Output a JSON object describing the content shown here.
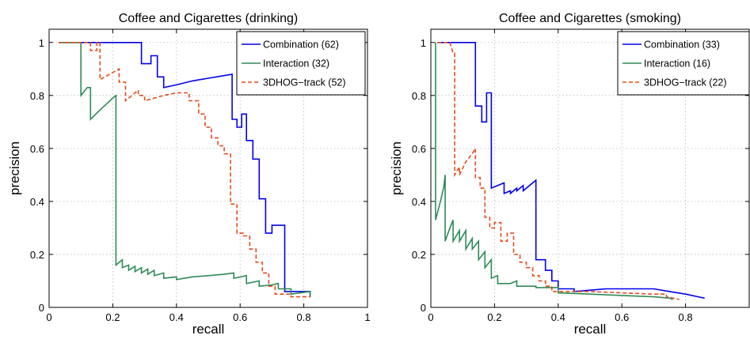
{
  "chart_data": [
    {
      "type": "line",
      "title": "Coffee and Cigarettes (drinking)",
      "xlabel": "recall",
      "ylabel": "precision",
      "xlim": [
        0,
        1
      ],
      "ylim": [
        0,
        1.05
      ],
      "xticks": [
        0,
        0.2,
        0.4,
        0.6,
        0.8,
        1
      ],
      "yticks": [
        0,
        0.2,
        0.4,
        0.6,
        0.8,
        1
      ],
      "xtick_labels": [
        "0",
        "0.2",
        "0.4",
        "0.6",
        "0.8",
        "1"
      ],
      "ytick_labels": [
        "0",
        "0.2",
        "0.4",
        "0.6",
        "0.8",
        "1"
      ],
      "grid": true,
      "legend_position": "top-right",
      "series": [
        {
          "name": "Combination (62)",
          "color": "#0000ee",
          "style": "solid",
          "points": [
            [
              0.03,
              1.0
            ],
            [
              0.29,
              1.0
            ],
            [
              0.29,
              0.92
            ],
            [
              0.32,
              0.92
            ],
            [
              0.32,
              0.95
            ],
            [
              0.34,
              0.95
            ],
            [
              0.34,
              0.87
            ],
            [
              0.36,
              0.87
            ],
            [
              0.36,
              0.83
            ],
            [
              0.4,
              0.84
            ],
            [
              0.45,
              0.855
            ],
            [
              0.5,
              0.865
            ],
            [
              0.54,
              0.873
            ],
            [
              0.575,
              0.88
            ],
            [
              0.575,
              0.71
            ],
            [
              0.59,
              0.71
            ],
            [
              0.59,
              0.68
            ],
            [
              0.605,
              0.68
            ],
            [
              0.605,
              0.73
            ],
            [
              0.62,
              0.73
            ],
            [
              0.62,
              0.63
            ],
            [
              0.64,
              0.63
            ],
            [
              0.64,
              0.56
            ],
            [
              0.66,
              0.56
            ],
            [
              0.66,
              0.41
            ],
            [
              0.68,
              0.41
            ],
            [
              0.68,
              0.28
            ],
            [
              0.7,
              0.28
            ],
            [
              0.7,
              0.31
            ],
            [
              0.72,
              0.31
            ],
            [
              0.73,
              0.31
            ],
            [
              0.74,
              0.31
            ],
            [
              0.74,
              0.06
            ],
            [
              0.82,
              0.06
            ],
            [
              0.82,
              0.04
            ]
          ]
        },
        {
          "name": "Interaction (32)",
          "color": "#2e8b57",
          "style": "solid",
          "points": [
            [
              0.03,
              1.0
            ],
            [
              0.1,
              1.0
            ],
            [
              0.1,
              0.8
            ],
            [
              0.12,
              0.83
            ],
            [
              0.13,
              0.83
            ],
            [
              0.13,
              0.71
            ],
            [
              0.16,
              0.745
            ],
            [
              0.2,
              0.79
            ],
            [
              0.21,
              0.8
            ],
            [
              0.21,
              0.16
            ],
            [
              0.23,
              0.18
            ],
            [
              0.23,
              0.15
            ],
            [
              0.25,
              0.16
            ],
            [
              0.25,
              0.14
            ],
            [
              0.27,
              0.155
            ],
            [
              0.27,
              0.135
            ],
            [
              0.29,
              0.15
            ],
            [
              0.29,
              0.13
            ],
            [
              0.31,
              0.145
            ],
            [
              0.31,
              0.125
            ],
            [
              0.33,
              0.14
            ],
            [
              0.33,
              0.12
            ],
            [
              0.36,
              0.13
            ],
            [
              0.36,
              0.11
            ],
            [
              0.4,
              0.115
            ],
            [
              0.4,
              0.105
            ],
            [
              0.45,
              0.115
            ],
            [
              0.5,
              0.12
            ],
            [
              0.55,
              0.125
            ],
            [
              0.58,
              0.13
            ],
            [
              0.58,
              0.11
            ],
            [
              0.62,
              0.12
            ],
            [
              0.62,
              0.09
            ],
            [
              0.66,
              0.1
            ],
            [
              0.66,
              0.08
            ],
            [
              0.7,
              0.085
            ],
            [
              0.72,
              0.09
            ],
            [
              0.72,
              0.07
            ],
            [
              0.76,
              0.07
            ],
            [
              0.76,
              0.05
            ],
            [
              0.82,
              0.06
            ],
            [
              0.82,
              0.04
            ]
          ]
        },
        {
          "name": "3DHOG−track (52)",
          "color": "#e34a1a",
          "style": "dashed",
          "points": [
            [
              0.03,
              1.0
            ],
            [
              0.13,
              1.0
            ],
            [
              0.13,
              0.97
            ],
            [
              0.15,
              0.97
            ],
            [
              0.15,
              1.0
            ],
            [
              0.16,
              1.0
            ],
            [
              0.16,
              0.86
            ],
            [
              0.19,
              0.88
            ],
            [
              0.22,
              0.9
            ],
            [
              0.22,
              0.85
            ],
            [
              0.24,
              0.85
            ],
            [
              0.24,
              0.78
            ],
            [
              0.26,
              0.8
            ],
            [
              0.28,
              0.82
            ],
            [
              0.28,
              0.8
            ],
            [
              0.3,
              0.8
            ],
            [
              0.3,
              0.78
            ],
            [
              0.33,
              0.79
            ],
            [
              0.36,
              0.8
            ],
            [
              0.4,
              0.81
            ],
            [
              0.44,
              0.81
            ],
            [
              0.44,
              0.78
            ],
            [
              0.47,
              0.78
            ],
            [
              0.47,
              0.73
            ],
            [
              0.49,
              0.73
            ],
            [
              0.49,
              0.68
            ],
            [
              0.51,
              0.68
            ],
            [
              0.51,
              0.64
            ],
            [
              0.53,
              0.64
            ],
            [
              0.53,
              0.61
            ],
            [
              0.55,
              0.61
            ],
            [
              0.55,
              0.58
            ],
            [
              0.57,
              0.58
            ],
            [
              0.57,
              0.39
            ],
            [
              0.59,
              0.39
            ],
            [
              0.59,
              0.28
            ],
            [
              0.61,
              0.28
            ],
            [
              0.61,
              0.27
            ],
            [
              0.63,
              0.27
            ],
            [
              0.63,
              0.22
            ],
            [
              0.65,
              0.22
            ],
            [
              0.65,
              0.17
            ],
            [
              0.67,
              0.17
            ],
            [
              0.67,
              0.13
            ],
            [
              0.69,
              0.13
            ],
            [
              0.69,
              0.08
            ],
            [
              0.71,
              0.08
            ],
            [
              0.71,
              0.05
            ],
            [
              0.76,
              0.05
            ],
            [
              0.76,
              0.04
            ],
            [
              0.82,
              0.04
            ]
          ]
        }
      ]
    },
    {
      "type": "line",
      "title": "Coffee and Cigarettes (smoking)",
      "xlabel": "recall",
      "ylabel": "precision",
      "xlim": [
        0,
        1
      ],
      "ylim": [
        0,
        1.05
      ],
      "xticks": [
        0,
        0.2,
        0.4,
        0.6,
        0.8,
        1
      ],
      "yticks": [
        0,
        0.2,
        0.4,
        0.6,
        0.8,
        1
      ],
      "xtick_labels": [
        "0",
        "0.2",
        "0.4",
        "0.6",
        "0.8",
        "1"
      ],
      "ytick_labels": [
        "0",
        "0.2",
        "0.4",
        "0.6",
        "0.8",
        "1"
      ],
      "grid": true,
      "legend_position": "top-right",
      "series": [
        {
          "name": "Combination (33)",
          "color": "#0000ee",
          "style": "solid",
          "points": [
            [
              0.02,
              1.0
            ],
            [
              0.14,
              1.0
            ],
            [
              0.14,
              0.76
            ],
            [
              0.16,
              0.76
            ],
            [
              0.16,
              0.7
            ],
            [
              0.175,
              0.7
            ],
            [
              0.175,
              0.81
            ],
            [
              0.19,
              0.81
            ],
            [
              0.19,
              0.45
            ],
            [
              0.21,
              0.46
            ],
            [
              0.23,
              0.47
            ],
            [
              0.23,
              0.43
            ],
            [
              0.25,
              0.44
            ],
            [
              0.25,
              0.43
            ],
            [
              0.27,
              0.45
            ],
            [
              0.27,
              0.44
            ],
            [
              0.29,
              0.46
            ],
            [
              0.29,
              0.44
            ],
            [
              0.31,
              0.46
            ],
            [
              0.33,
              0.48
            ],
            [
              0.33,
              0.18
            ],
            [
              0.36,
              0.18
            ],
            [
              0.36,
              0.14
            ],
            [
              0.38,
              0.14
            ],
            [
              0.38,
              0.1
            ],
            [
              0.4,
              0.1
            ],
            [
              0.4,
              0.07
            ],
            [
              0.45,
              0.07
            ],
            [
              0.45,
              0.06
            ],
            [
              0.55,
              0.07
            ],
            [
              0.6,
              0.07
            ],
            [
              0.65,
              0.07
            ],
            [
              0.7,
              0.07
            ],
            [
              0.75,
              0.06
            ],
            [
              0.8,
              0.05
            ],
            [
              0.84,
              0.04
            ],
            [
              0.86,
              0.035
            ]
          ]
        },
        {
          "name": "Interaction (16)",
          "color": "#2e8b57",
          "style": "solid",
          "points": [
            [
              0.015,
              1.0
            ],
            [
              0.015,
              0.33
            ],
            [
              0.03,
              0.4
            ],
            [
              0.04,
              0.45
            ],
            [
              0.045,
              0.5
            ],
            [
              0.045,
              0.25
            ],
            [
              0.06,
              0.3
            ],
            [
              0.07,
              0.33
            ],
            [
              0.07,
              0.25
            ],
            [
              0.09,
              0.29
            ],
            [
              0.09,
              0.25
            ],
            [
              0.11,
              0.29
            ],
            [
              0.11,
              0.22
            ],
            [
              0.13,
              0.26
            ],
            [
              0.13,
              0.22
            ],
            [
              0.15,
              0.25
            ],
            [
              0.15,
              0.18
            ],
            [
              0.17,
              0.21
            ],
            [
              0.17,
              0.15
            ],
            [
              0.19,
              0.18
            ],
            [
              0.19,
              0.11
            ],
            [
              0.21,
              0.12
            ],
            [
              0.21,
              0.09
            ],
            [
              0.25,
              0.09
            ],
            [
              0.27,
              0.1
            ],
            [
              0.27,
              0.08
            ],
            [
              0.33,
              0.08
            ],
            [
              0.33,
              0.075
            ],
            [
              0.4,
              0.075
            ],
            [
              0.4,
              0.055
            ],
            [
              0.5,
              0.05
            ],
            [
              0.6,
              0.045
            ],
            [
              0.7,
              0.04
            ],
            [
              0.75,
              0.035
            ],
            [
              0.76,
              0.03
            ]
          ]
        },
        {
          "name": "3DHOG−track (22)",
          "color": "#e34a1a",
          "style": "dashed",
          "points": [
            [
              0.02,
              1.0
            ],
            [
              0.06,
              1.0
            ],
            [
              0.07,
              0.96
            ],
            [
              0.075,
              0.96
            ],
            [
              0.075,
              0.5
            ],
            [
              0.09,
              0.53
            ],
            [
              0.09,
              0.5
            ],
            [
              0.11,
              0.55
            ],
            [
              0.13,
              0.58
            ],
            [
              0.14,
              0.6
            ],
            [
              0.14,
              0.49
            ],
            [
              0.155,
              0.49
            ],
            [
              0.155,
              0.45
            ],
            [
              0.17,
              0.45
            ],
            [
              0.17,
              0.34
            ],
            [
              0.185,
              0.34
            ],
            [
              0.185,
              0.3
            ],
            [
              0.2,
              0.3
            ],
            [
              0.2,
              0.32
            ],
            [
              0.22,
              0.32
            ],
            [
              0.22,
              0.25
            ],
            [
              0.24,
              0.25
            ],
            [
              0.24,
              0.28
            ],
            [
              0.26,
              0.28
            ],
            [
              0.26,
              0.2
            ],
            [
              0.28,
              0.2
            ],
            [
              0.28,
              0.17
            ],
            [
              0.3,
              0.17
            ],
            [
              0.3,
              0.15
            ],
            [
              0.32,
              0.15
            ],
            [
              0.32,
              0.12
            ],
            [
              0.34,
              0.12
            ],
            [
              0.34,
              0.1
            ],
            [
              0.36,
              0.1
            ],
            [
              0.36,
              0.08
            ],
            [
              0.38,
              0.08
            ],
            [
              0.38,
              0.06
            ],
            [
              0.5,
              0.06
            ],
            [
              0.6,
              0.055
            ],
            [
              0.7,
              0.05
            ],
            [
              0.74,
              0.05
            ],
            [
              0.74,
              0.04
            ],
            [
              0.78,
              0.03
            ]
          ]
        }
      ]
    }
  ]
}
